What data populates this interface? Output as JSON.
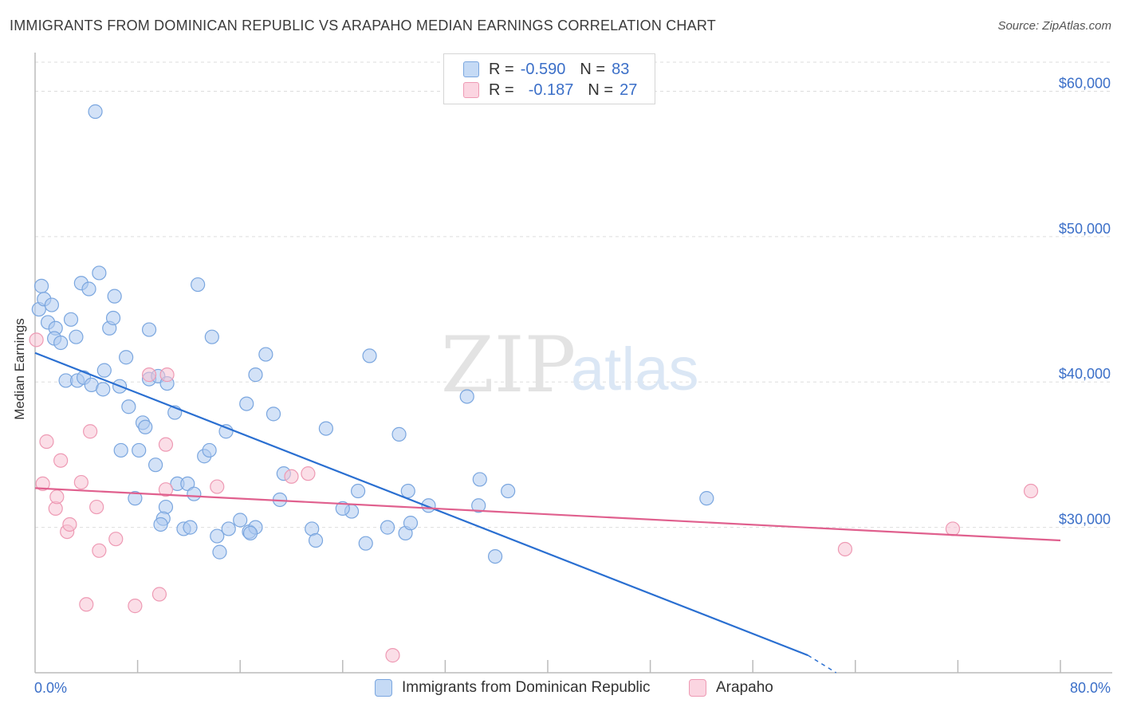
{
  "title": "IMMIGRANTS FROM DOMINICAN REPUBLIC VS ARAPAHO MEDIAN EARNINGS CORRELATION CHART",
  "source": "Source: ZipAtlas.com",
  "watermark": {
    "zip": "ZIP",
    "atlas": "atlas"
  },
  "legend": {
    "series1": {
      "r_label": "R =",
      "r_value": "-0.590",
      "n_label": "N =",
      "n_value": "83"
    },
    "series2": {
      "r_label": "R =",
      "r_value": "-0.187",
      "n_label": "N =",
      "n_value": "27"
    }
  },
  "bottom_legend": {
    "series1": "Immigrants from Dominican Republic",
    "series2": "Arapaho"
  },
  "colors": {
    "blue_fill": "#aecbf0",
    "blue_stroke": "#7aa6df",
    "blue_line": "#2a6fd1",
    "pink_fill": "#f7c3d3",
    "pink_stroke": "#ee9ab4",
    "pink_line": "#e0608e",
    "axis_text": "#3b6fc8",
    "grid": "#dddddd"
  },
  "chart_data": {
    "type": "scatter",
    "title": "IMMIGRANTS FROM DOMINICAN REPUBLIC VS ARAPAHO MEDIAN EARNINGS CORRELATION CHART",
    "xlabel": "",
    "ylabel": "Median Earnings",
    "xlim": [
      0,
      80
    ],
    "ylim": [
      20000,
      62000
    ],
    "x_tick_labels": [
      "0.0%",
      "80.0%"
    ],
    "y_ticks": [
      30000,
      40000,
      50000,
      60000
    ],
    "y_tick_labels": [
      "$30,000",
      "$40,000",
      "$50,000",
      "$60,000"
    ],
    "grid": true,
    "legend_position": "top-center",
    "series": [
      {
        "name": "Immigrants from Dominican Republic",
        "color": "#aecbf0",
        "trend": {
          "x": [
            0,
            60.3
          ],
          "y": [
            42000,
            21200
          ],
          "dashed_extension_to": [
            62.5,
            20000
          ]
        },
        "points": [
          [
            0.5,
            46.6
          ],
          [
            0.3,
            45.0
          ],
          [
            0.7,
            45.7
          ],
          [
            1.3,
            45.3
          ],
          [
            1.0,
            44.1
          ],
          [
            2.8,
            44.3
          ],
          [
            1.6,
            43.7
          ],
          [
            1.5,
            43.0
          ],
          [
            2.0,
            42.7
          ],
          [
            3.2,
            43.1
          ],
          [
            3.6,
            46.8
          ],
          [
            4.2,
            46.4
          ],
          [
            5.0,
            47.5
          ],
          [
            6.2,
            45.9
          ],
          [
            4.7,
            58.6
          ],
          [
            5.8,
            43.7
          ],
          [
            6.1,
            44.4
          ],
          [
            8.9,
            43.6
          ],
          [
            12.7,
            46.7
          ],
          [
            13.8,
            43.1
          ],
          [
            2.4,
            40.1
          ],
          [
            3.3,
            40.1
          ],
          [
            3.8,
            40.3
          ],
          [
            4.4,
            39.8
          ],
          [
            5.3,
            39.5
          ],
          [
            5.4,
            40.8
          ],
          [
            6.6,
            39.7
          ],
          [
            7.1,
            41.7
          ],
          [
            8.9,
            40.2
          ],
          [
            9.6,
            40.4
          ],
          [
            10.3,
            39.9
          ],
          [
            18.0,
            41.9
          ],
          [
            17.2,
            40.5
          ],
          [
            26.1,
            41.8
          ],
          [
            7.3,
            38.3
          ],
          [
            8.4,
            37.2
          ],
          [
            8.6,
            36.9
          ],
          [
            10.9,
            37.9
          ],
          [
            14.9,
            36.6
          ],
          [
            16.5,
            38.5
          ],
          [
            18.6,
            37.8
          ],
          [
            22.7,
            36.8
          ],
          [
            28.4,
            36.4
          ],
          [
            33.7,
            39.0
          ],
          [
            6.7,
            35.3
          ],
          [
            8.1,
            35.3
          ],
          [
            9.4,
            34.3
          ],
          [
            13.2,
            34.9
          ],
          [
            13.6,
            35.3
          ],
          [
            19.4,
            33.7
          ],
          [
            7.8,
            32.0
          ],
          [
            11.1,
            33.0
          ],
          [
            11.9,
            33.0
          ],
          [
            12.4,
            32.3
          ],
          [
            19.1,
            31.9
          ],
          [
            25.2,
            32.5
          ],
          [
            29.1,
            32.5
          ],
          [
            34.7,
            33.3
          ],
          [
            36.9,
            32.5
          ],
          [
            52.4,
            32.0
          ],
          [
            10.2,
            31.4
          ],
          [
            10.0,
            30.6
          ],
          [
            9.8,
            30.2
          ],
          [
            11.6,
            29.9
          ],
          [
            12.1,
            30.0
          ],
          [
            14.2,
            29.4
          ],
          [
            15.1,
            29.9
          ],
          [
            16.0,
            30.5
          ],
          [
            16.7,
            29.7
          ],
          [
            17.2,
            30.0
          ],
          [
            14.4,
            28.3
          ],
          [
            21.6,
            29.9
          ],
          [
            21.9,
            29.1
          ],
          [
            24.7,
            31.1
          ],
          [
            25.8,
            28.9
          ],
          [
            27.5,
            30.0
          ],
          [
            28.9,
            29.6
          ],
          [
            29.3,
            30.3
          ],
          [
            30.7,
            31.5
          ],
          [
            34.6,
            31.5
          ],
          [
            35.9,
            28.0
          ],
          [
            16.8,
            29.6
          ],
          [
            24.0,
            31.3
          ]
        ]
      },
      {
        "name": "Arapaho",
        "color": "#f7c3d3",
        "trend": {
          "x": [
            0,
            80
          ],
          "y": [
            32700,
            29100
          ]
        },
        "points": [
          [
            0.1,
            42.9
          ],
          [
            0.6,
            33.0
          ],
          [
            0.9,
            35.9
          ],
          [
            1.6,
            31.3
          ],
          [
            1.7,
            32.1
          ],
          [
            2.0,
            34.6
          ],
          [
            2.5,
            29.7
          ],
          [
            2.7,
            30.2
          ],
          [
            3.6,
            33.1
          ],
          [
            4.3,
            36.6
          ],
          [
            4.0,
            24.7
          ],
          [
            4.8,
            31.4
          ],
          [
            5.0,
            28.4
          ],
          [
            6.3,
            29.2
          ],
          [
            7.8,
            24.6
          ],
          [
            8.9,
            40.5
          ],
          [
            10.3,
            40.5
          ],
          [
            10.2,
            35.7
          ],
          [
            9.7,
            25.4
          ],
          [
            10.2,
            32.6
          ],
          [
            14.2,
            32.8
          ],
          [
            20.0,
            33.5
          ],
          [
            21.3,
            33.7
          ],
          [
            27.9,
            21.2
          ],
          [
            63.2,
            28.5
          ],
          [
            71.6,
            29.9
          ],
          [
            77.7,
            32.5
          ]
        ]
      }
    ]
  }
}
